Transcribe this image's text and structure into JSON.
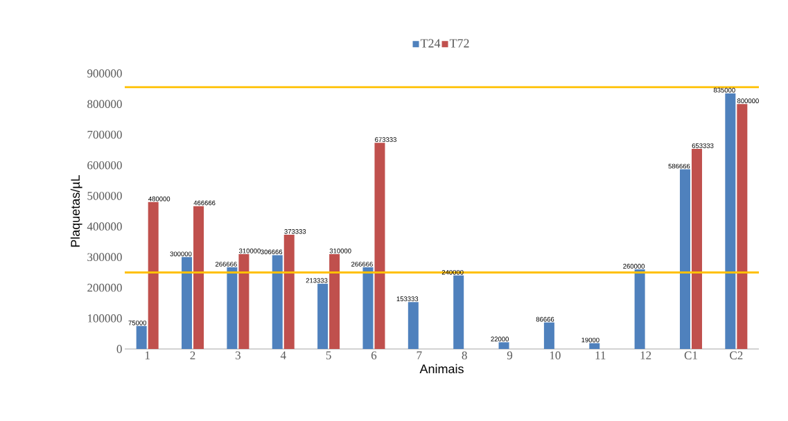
{
  "chart_data": {
    "type": "bar",
    "xlabel": "Animais",
    "ylabel": "Plaquetas/µL",
    "categories": [
      "1",
      "2",
      "3",
      "4",
      "5",
      "6",
      "7",
      "8",
      "9",
      "10",
      "11",
      "12",
      "C1",
      "C2"
    ],
    "series": [
      {
        "name": "T24",
        "color": "#4f81bd",
        "values": [
          75000,
          300000,
          266666,
          306666,
          213333,
          266666,
          153333,
          240000,
          22000,
          86666,
          19000,
          260000,
          586666,
          835000
        ]
      },
      {
        "name": "T72",
        "color": "#c0504d",
        "values": [
          480000,
          466666,
          310000,
          373333,
          310000,
          673333,
          null,
          null,
          null,
          null,
          null,
          null,
          653333,
          800000
        ]
      }
    ],
    "ylim": [
      0,
      900000
    ],
    "yticks": [
      0,
      100000,
      200000,
      300000,
      400000,
      500000,
      600000,
      700000,
      800000,
      900000
    ],
    "ref_lines": [
      {
        "axis": "y",
        "value": 855000,
        "color": "#ffc000"
      },
      {
        "axis": "y",
        "value": 250000,
        "color": "#ffc000"
      }
    ],
    "data_labels": true,
    "legend": "top",
    "grid": false
  }
}
